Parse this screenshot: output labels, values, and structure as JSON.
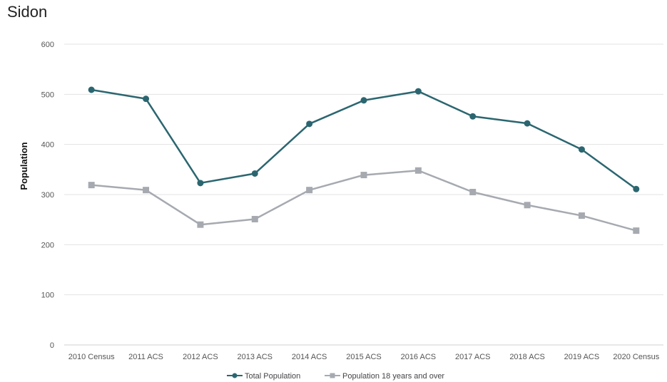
{
  "chart_data": {
    "type": "line",
    "title": "Sidon",
    "xlabel": "",
    "ylabel": "Population",
    "ylim": [
      0,
      600
    ],
    "yticks": [
      0,
      100,
      200,
      300,
      400,
      500,
      600
    ],
    "grid": true,
    "legend_position": "bottom",
    "categories": [
      "2010 Census",
      "2011 ACS",
      "2012 ACS",
      "2013 ACS",
      "2014 ACS",
      "2015 ACS",
      "2016 ACS",
      "2017 ACS",
      "2018 ACS",
      "2019 ACS",
      "2020 Census"
    ],
    "series": [
      {
        "name": "Total Population",
        "color": "#2b6670",
        "marker": "circle",
        "values": [
          509,
          491,
          323,
          342,
          441,
          488,
          506,
          456,
          442,
          390,
          311
        ]
      },
      {
        "name": "Population 18 years and over",
        "color": "#a6aab0",
        "marker": "square",
        "values": [
          319,
          309,
          240,
          251,
          309,
          339,
          348,
          305,
          279,
          258,
          228
        ]
      }
    ]
  }
}
